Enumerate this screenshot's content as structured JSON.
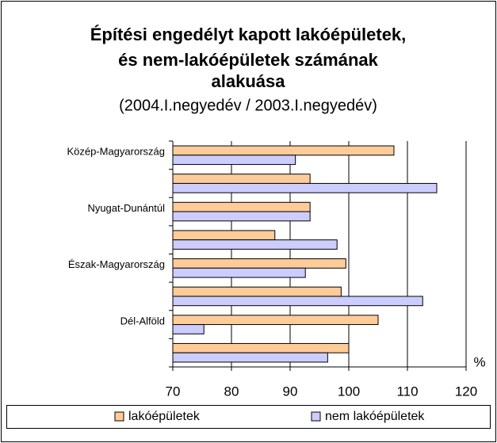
{
  "chart_data": {
    "type": "bar",
    "orientation": "horizontal",
    "title": [
      "Építési engedélyt kapott lakóépületek,",
      "és nem-lakóépületek számának",
      "alakuása"
    ],
    "subtitle": "(2004.I.negyedév / 2003.I.negyedév)",
    "x_label": "%",
    "categories": [
      "Közép-Magyarország",
      null,
      "Nyugat-Dunántúl",
      null,
      "Észak-Magyarország",
      null,
      "Dél-Alföld",
      null
    ],
    "series": [
      {
        "name": "lakóépületek",
        "color": "#ffcc99",
        "values": [
          107.7,
          93.4,
          93.4,
          87.4,
          99.5,
          98.7,
          105,
          100
        ]
      },
      {
        "name": "nem lakóépületek",
        "color": "#ccccff",
        "values": [
          90.9,
          115,
          93.4,
          98,
          92.6,
          112.6,
          75.3,
          96.4
        ]
      }
    ],
    "xlim": [
      70,
      120
    ],
    "xticks": [
      70,
      80,
      90,
      100,
      110,
      120
    ],
    "grid": true,
    "legend": "bottom"
  }
}
